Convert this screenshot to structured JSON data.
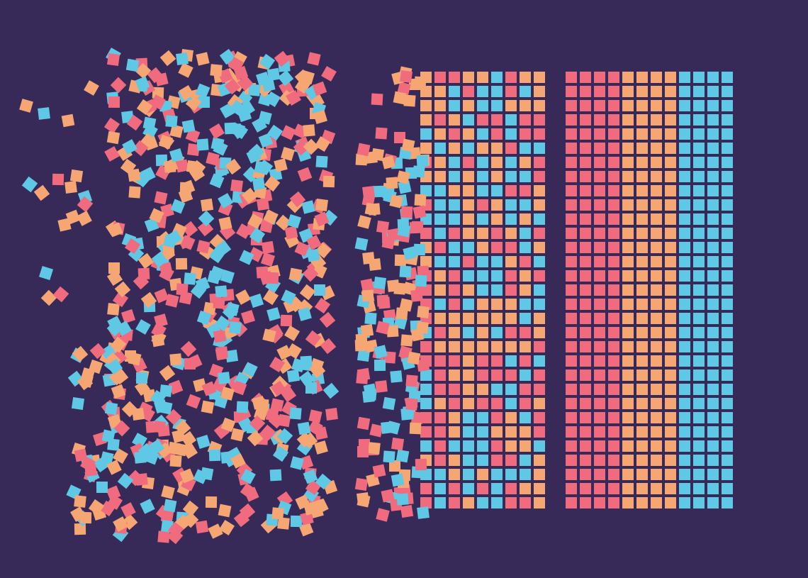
{
  "colors": {
    "background": "#372a58",
    "pink": "#f06b7e",
    "orange": "#f5a673",
    "blue": "#5ec8e5"
  },
  "sections": {
    "scattered": {
      "description_shown": false
    },
    "partially_sorted": {
      "columns": 8
    },
    "sorted": {
      "columns": 12,
      "color_order": [
        "pink",
        "orange",
        "blue"
      ]
    }
  }
}
